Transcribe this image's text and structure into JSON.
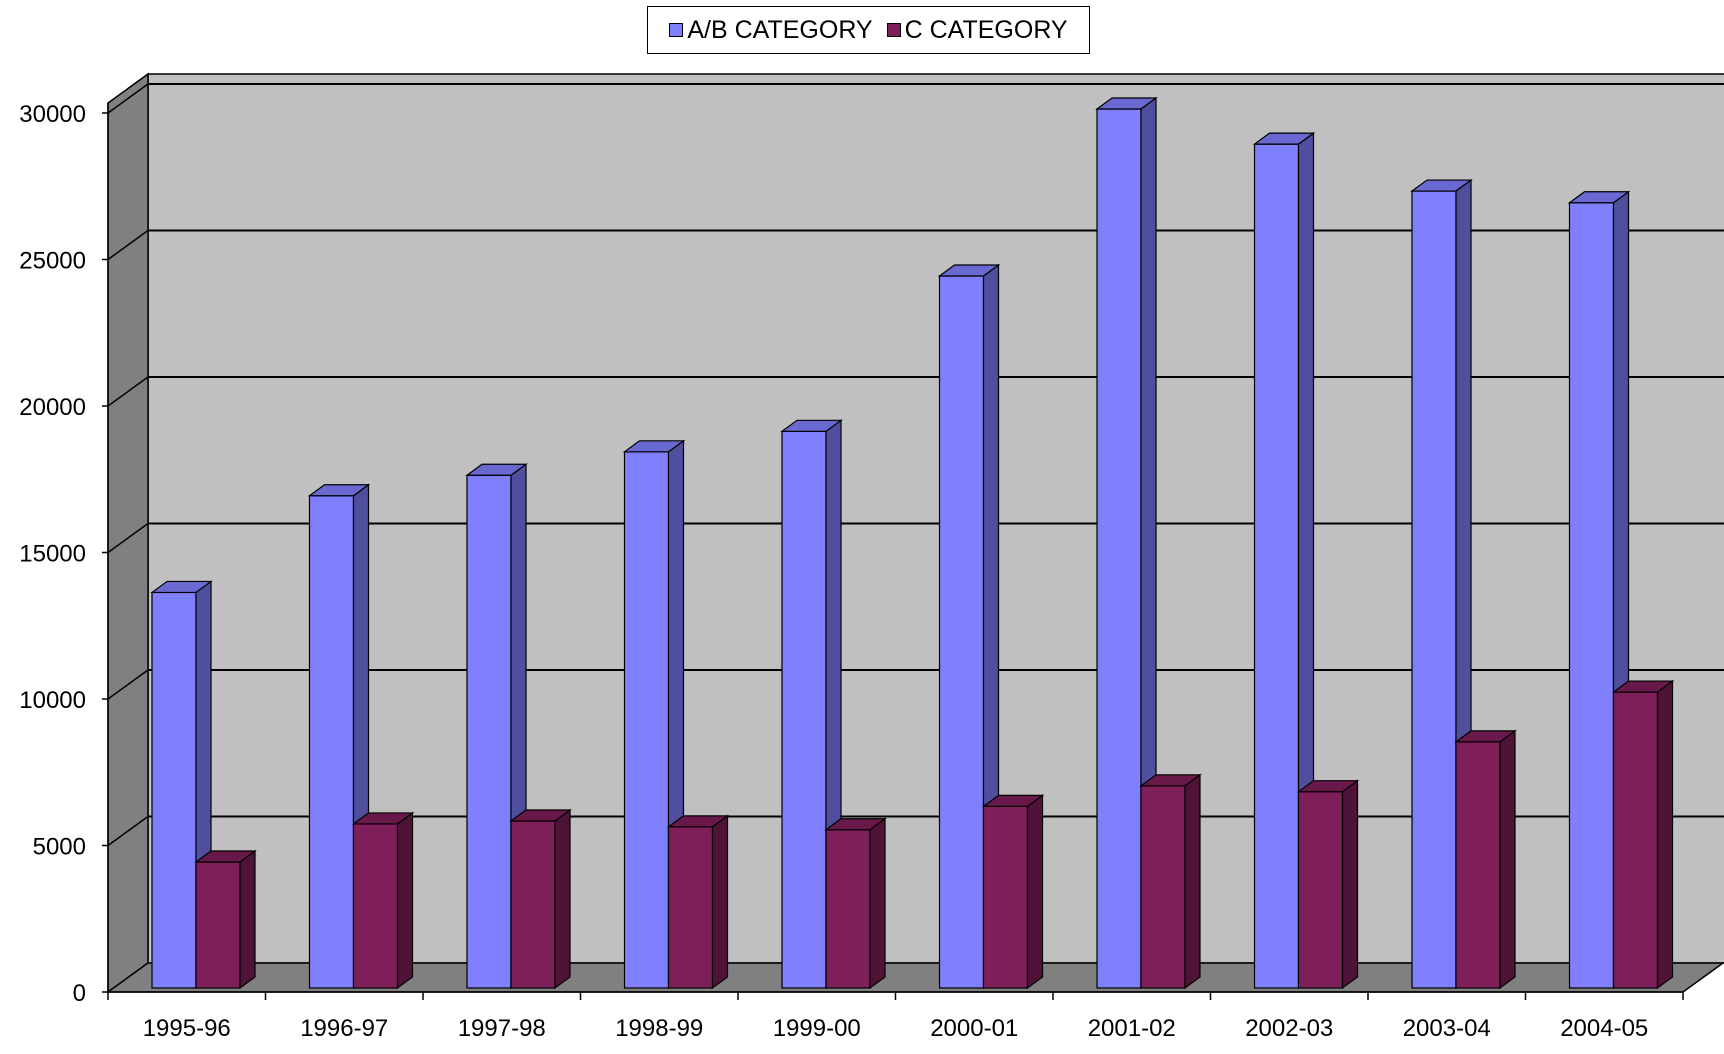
{
  "chart_data": {
    "type": "bar",
    "categories": [
      "1995-96",
      "1996-97",
      "1997-98",
      "1998-99",
      "1999-00",
      "2000-01",
      "2001-02",
      "2002-03",
      "2003-04",
      "2004-05"
    ],
    "series": [
      {
        "name": "A/B CATEGORY",
        "color": "#8080FF",
        "values": [
          13500,
          16800,
          17500,
          18300,
          19000,
          24300,
          30000,
          28800,
          27200,
          26800
        ]
      },
      {
        "name": "C CATEGORY",
        "color": "#7F1F5A",
        "values": [
          4300,
          5600,
          5700,
          5500,
          5400,
          6200,
          6900,
          6700,
          8400,
          10100
        ]
      }
    ],
    "y_ticks": [
      "0",
      "5000",
      "10000",
      "15000",
      "20000",
      "25000",
      "30000"
    ],
    "ylim": [
      0,
      30000
    ],
    "grid": true,
    "legend_position": "top-center",
    "style": "3d-column"
  }
}
